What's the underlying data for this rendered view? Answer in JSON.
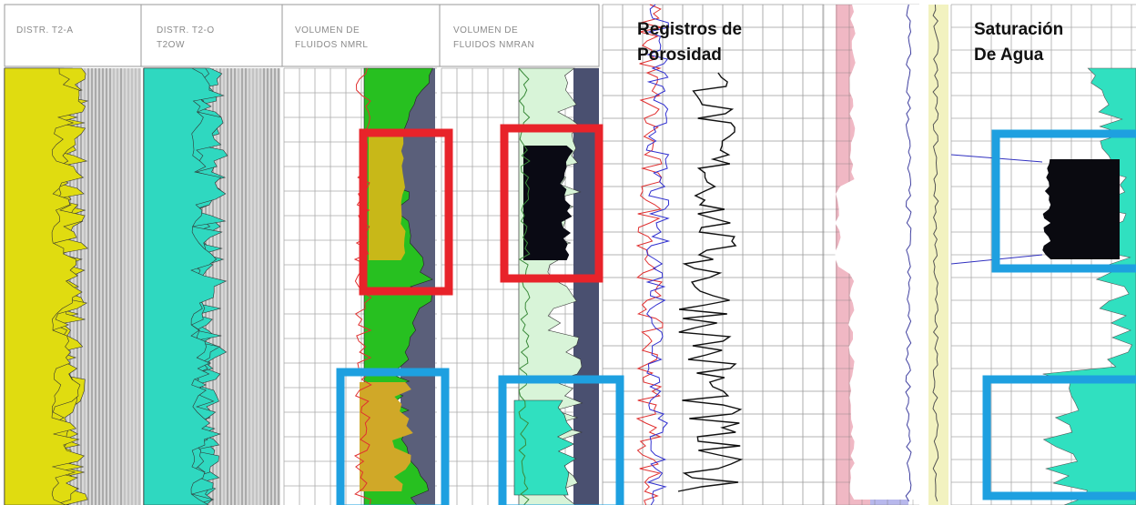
{
  "headers": [
    [
      "DISTR. T2-A"
    ],
    [
      "DISTR. T2-O",
      "T2OW"
    ],
    [
      "VOLUMEN DE",
      "FLUIDOS NMRL"
    ],
    [
      "VOLUMEN DE",
      "FLUIDOS NMRAN"
    ]
  ],
  "annotations": [
    [
      "Registros de",
      "Porosidad"
    ],
    [
      "Saturación",
      "De Agua"
    ]
  ]
}
